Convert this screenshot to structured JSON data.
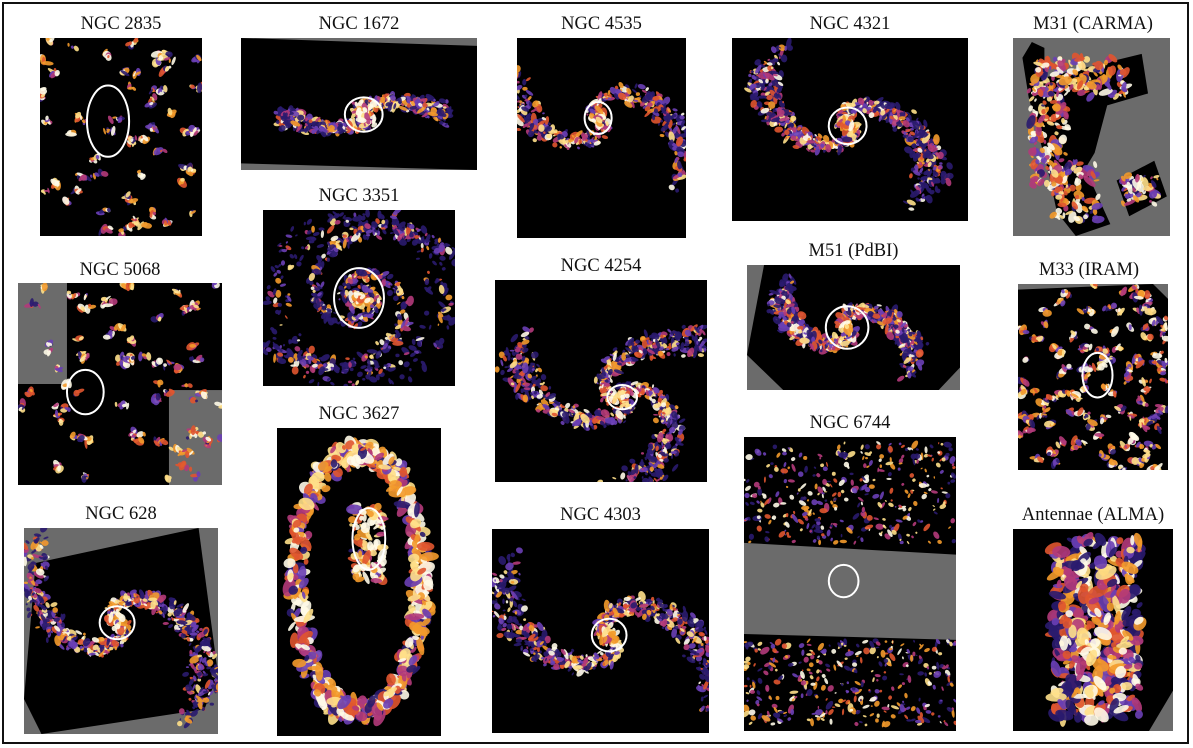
{
  "figure": {
    "panels": [
      {
        "id": "ngc2835",
        "label": "NGC 2835"
      },
      {
        "id": "ngc1672",
        "label": "NGC 1672"
      },
      {
        "id": "ngc4535",
        "label": "NGC 4535"
      },
      {
        "id": "ngc4321",
        "label": "NGC 4321"
      },
      {
        "id": "m31",
        "label": "M31 (CARMA)"
      },
      {
        "id": "ngc3351",
        "label": "NGC 3351"
      },
      {
        "id": "ngc5068",
        "label": "NGC 5068"
      },
      {
        "id": "ngc4254",
        "label": "NGC 4254"
      },
      {
        "id": "m51",
        "label": "M51 (PdBI)"
      },
      {
        "id": "m33",
        "label": "M33 (IRAM)"
      },
      {
        "id": "ngc3627",
        "label": "NGC 3627"
      },
      {
        "id": "ngc6744",
        "label": "NGC 6744"
      },
      {
        "id": "ngc628",
        "label": "NGC 628"
      },
      {
        "id": "ngc4303",
        "label": "NGC 4303"
      },
      {
        "id": "antennae",
        "label": "Antennae (ALMA)"
      }
    ],
    "colors": {
      "background": "#000000",
      "no_coverage": "#6b6b6b",
      "colormap": [
        "#2a1b6e",
        "#6a3fb5",
        "#b23a7a",
        "#e0552f",
        "#f39a2b",
        "#ffe08a",
        "#fffbe8"
      ],
      "ellipse": "#ffffff"
    }
  }
}
